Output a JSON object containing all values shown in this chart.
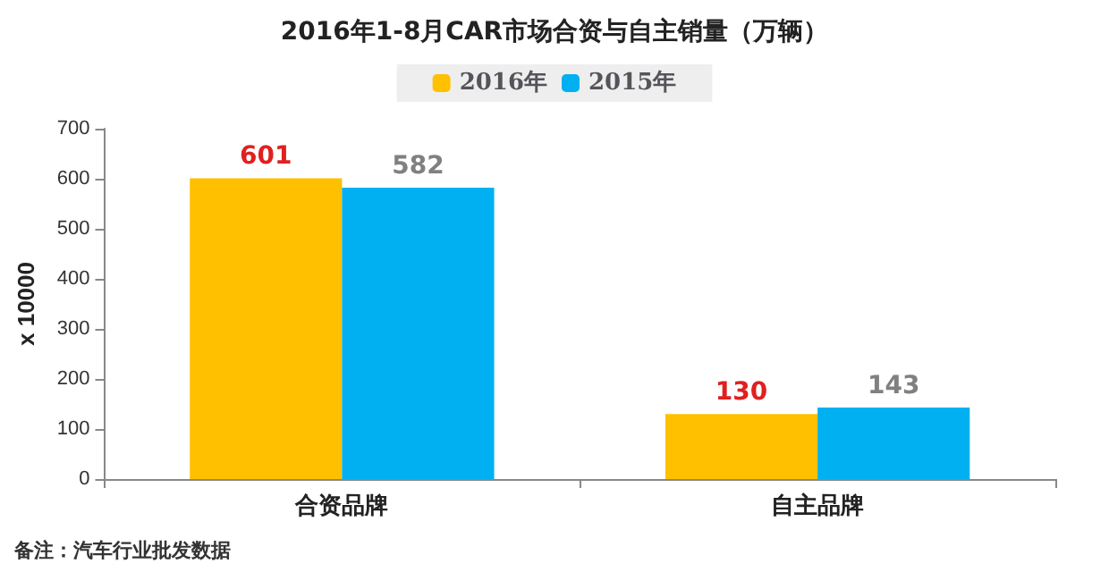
{
  "chart_data": {
    "type": "bar",
    "title": "2016年1-8月CAR市场合资与自主销量（万辆）",
    "ylabel": "x 10000",
    "categories": [
      "合资品牌",
      "自主品牌"
    ],
    "series": [
      {
        "name": "2016年",
        "color": "#ffc000",
        "values": [
          601,
          130
        ]
      },
      {
        "name": "2015年",
        "color": "#00b0f0",
        "values": [
          582,
          143
        ]
      }
    ],
    "ylim": [
      0,
      700
    ],
    "yticks": [
      0,
      100,
      200,
      300,
      400,
      500,
      600,
      700
    ],
    "data_labels": true,
    "legend": "top",
    "grid": false,
    "annotations": [
      "备注：汽车行业批发数据"
    ]
  }
}
